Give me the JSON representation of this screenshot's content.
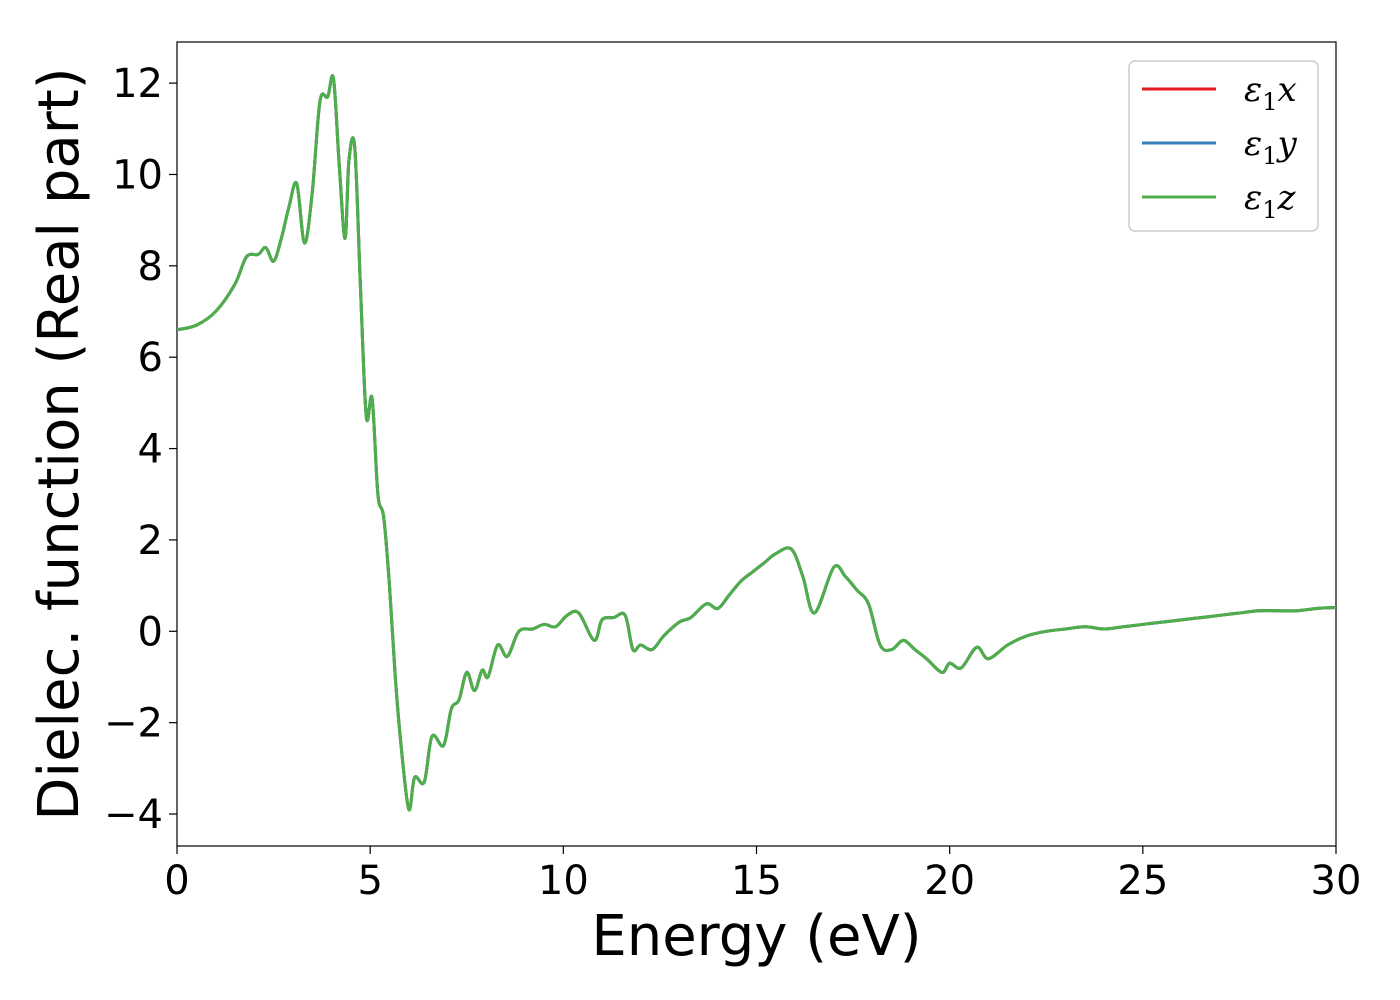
{
  "chart_data": {
    "type": "line",
    "xlabel": "Energy (eV)",
    "ylabel": "Dielec. function (Real part)",
    "xlim": [
      0,
      30
    ],
    "ylim": [
      -4.7,
      12.9
    ],
    "xticks": [
      0,
      5,
      10,
      15,
      20,
      25,
      30
    ],
    "yticks": [
      -4,
      -2,
      0,
      2,
      4,
      6,
      8,
      10,
      12
    ],
    "xtick_labels": [
      "0",
      "5",
      "10",
      "15",
      "20",
      "25",
      "30"
    ],
    "ytick_labels": [
      "−4",
      "−2",
      "0",
      "2",
      "4",
      "6",
      "8",
      "10",
      "12"
    ],
    "grid": false,
    "legend_position": "top-right",
    "x": [
      0,
      0.5,
      1.0,
      1.5,
      1.8,
      2.1,
      2.3,
      2.5,
      2.7,
      2.9,
      3.1,
      3.3,
      3.5,
      3.7,
      3.9,
      4.05,
      4.2,
      4.35,
      4.45,
      4.6,
      4.75,
      4.9,
      5.05,
      5.2,
      5.35,
      5.5,
      5.65,
      5.8,
      6.0,
      6.15,
      6.4,
      6.6,
      6.9,
      7.1,
      7.3,
      7.5,
      7.7,
      7.9,
      8.05,
      8.3,
      8.55,
      8.85,
      9.2,
      9.5,
      9.8,
      10.1,
      10.4,
      10.8,
      11.0,
      11.3,
      11.6,
      11.8,
      12.0,
      12.3,
      12.6,
      13.0,
      13.3,
      13.7,
      14.0,
      14.3,
      14.6,
      14.9,
      15.2,
      15.5,
      15.9,
      16.2,
      16.5,
      17.0,
      17.3,
      17.6,
      17.9,
      18.2,
      18.5,
      18.8,
      19.1,
      19.4,
      19.8,
      20.0,
      20.3,
      20.7,
      21.0,
      21.5,
      22.0,
      22.5,
      23.0,
      23.5,
      24.0,
      24.5,
      25.0,
      25.5,
      26.0,
      26.5,
      27.0,
      27.5,
      28.0,
      28.5,
      29.0,
      29.5,
      30.0
    ],
    "series": [
      {
        "name": "ε1x",
        "color": "#e41a1c",
        "values": [
          6.6,
          6.7,
          7.0,
          7.6,
          8.2,
          8.25,
          8.4,
          8.1,
          8.6,
          9.3,
          9.8,
          8.5,
          9.6,
          11.6,
          11.7,
          12.1,
          10.2,
          8.6,
          10.3,
          10.6,
          7.5,
          4.7,
          5.1,
          3.0,
          2.5,
          1.0,
          -1.0,
          -2.5,
          -3.9,
          -3.2,
          -3.3,
          -2.3,
          -2.5,
          -1.7,
          -1.5,
          -0.9,
          -1.3,
          -0.85,
          -1.0,
          -0.3,
          -0.55,
          0.0,
          0.05,
          0.15,
          0.1,
          0.35,
          0.4,
          -0.2,
          0.25,
          0.3,
          0.35,
          -0.4,
          -0.3,
          -0.4,
          -0.1,
          0.2,
          0.3,
          0.6,
          0.5,
          0.8,
          1.1,
          1.3,
          1.5,
          1.7,
          1.8,
          1.2,
          0.4,
          1.4,
          1.2,
          0.9,
          0.6,
          -0.3,
          -0.4,
          -0.2,
          -0.4,
          -0.6,
          -0.9,
          -0.7,
          -0.8,
          -0.35,
          -0.6,
          -0.3,
          -0.1,
          0.0,
          0.05,
          0.1,
          0.05,
          0.1,
          0.15,
          0.2,
          0.25,
          0.3,
          0.35,
          0.4,
          0.45,
          0.45,
          0.45,
          0.5,
          0.52
        ]
      },
      {
        "name": "ε1y",
        "color": "#377eb8",
        "values": [
          6.6,
          6.7,
          7.0,
          7.6,
          8.2,
          8.25,
          8.4,
          8.1,
          8.6,
          9.3,
          9.8,
          8.5,
          9.6,
          11.6,
          11.7,
          12.1,
          10.2,
          8.6,
          10.3,
          10.6,
          7.5,
          4.7,
          5.1,
          3.0,
          2.5,
          1.0,
          -1.0,
          -2.5,
          -3.9,
          -3.2,
          -3.3,
          -2.3,
          -2.5,
          -1.7,
          -1.5,
          -0.9,
          -1.3,
          -0.85,
          -1.0,
          -0.3,
          -0.55,
          0.0,
          0.05,
          0.15,
          0.1,
          0.35,
          0.4,
          -0.2,
          0.25,
          0.3,
          0.35,
          -0.4,
          -0.3,
          -0.4,
          -0.1,
          0.2,
          0.3,
          0.6,
          0.5,
          0.8,
          1.1,
          1.3,
          1.5,
          1.7,
          1.8,
          1.2,
          0.4,
          1.4,
          1.2,
          0.9,
          0.6,
          -0.3,
          -0.4,
          -0.2,
          -0.4,
          -0.6,
          -0.9,
          -0.7,
          -0.8,
          -0.35,
          -0.6,
          -0.3,
          -0.1,
          0.0,
          0.05,
          0.1,
          0.05,
          0.1,
          0.15,
          0.2,
          0.25,
          0.3,
          0.35,
          0.4,
          0.45,
          0.45,
          0.45,
          0.5,
          0.52
        ]
      },
      {
        "name": "ε1z",
        "color": "#4daf4a",
        "values": [
          6.6,
          6.7,
          7.0,
          7.6,
          8.2,
          8.25,
          8.4,
          8.1,
          8.6,
          9.3,
          9.8,
          8.5,
          9.6,
          11.6,
          11.7,
          12.1,
          10.2,
          8.6,
          10.3,
          10.6,
          7.5,
          4.7,
          5.1,
          3.0,
          2.5,
          1.0,
          -1.0,
          -2.5,
          -3.9,
          -3.2,
          -3.3,
          -2.3,
          -2.5,
          -1.7,
          -1.5,
          -0.9,
          -1.3,
          -0.85,
          -1.0,
          -0.3,
          -0.55,
          0.0,
          0.05,
          0.15,
          0.1,
          0.35,
          0.4,
          -0.2,
          0.25,
          0.3,
          0.35,
          -0.4,
          -0.3,
          -0.4,
          -0.1,
          0.2,
          0.3,
          0.6,
          0.5,
          0.8,
          1.1,
          1.3,
          1.5,
          1.7,
          1.8,
          1.2,
          0.4,
          1.4,
          1.2,
          0.9,
          0.6,
          -0.3,
          -0.4,
          -0.2,
          -0.4,
          -0.6,
          -0.9,
          -0.7,
          -0.8,
          -0.35,
          -0.6,
          -0.3,
          -0.1,
          0.0,
          0.05,
          0.1,
          0.05,
          0.1,
          0.15,
          0.2,
          0.25,
          0.3,
          0.35,
          0.4,
          0.45,
          0.45,
          0.45,
          0.5,
          0.52
        ]
      }
    ]
  },
  "legend": {
    "entries": [
      {
        "symbol": "ε",
        "subscript": "1",
        "suffix": "x"
      },
      {
        "symbol": "ε",
        "subscript": "1",
        "suffix": "y"
      },
      {
        "symbol": "ε",
        "subscript": "1",
        "suffix": "z"
      }
    ]
  }
}
